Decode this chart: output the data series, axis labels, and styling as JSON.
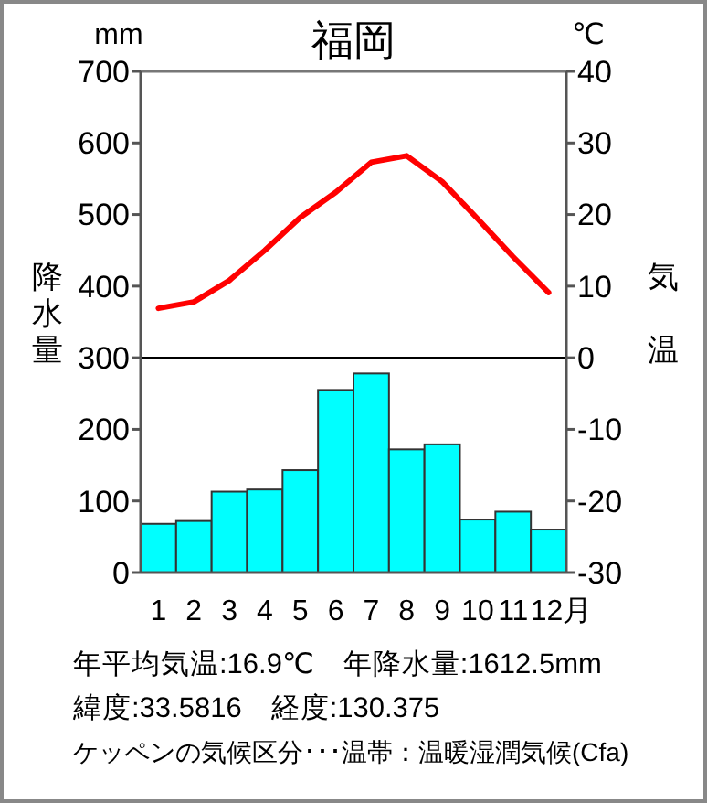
{
  "chart_data": {
    "type": "bar",
    "title": "福岡",
    "ylabel": "降水量",
    "y2label": "気温",
    "categories": [
      "1",
      "2",
      "3",
      "4",
      "5",
      "6",
      "7",
      "8",
      "9",
      "10",
      "11",
      "12月"
    ],
    "series": [
      {
        "color": "#00ffff",
        "values": [
          68,
          72,
          113,
          116,
          143,
          255,
          278,
          172,
          179,
          74,
          85,
          60
        ]
      },
      {
        "type": "line",
        "axis": "y2",
        "color": "#ff0000",
        "values": [
          6.9,
          7.8,
          10.8,
          15.0,
          19.6,
          23.1,
          27.3,
          28.2,
          24.6,
          19.4,
          14.1,
          9.1
        ]
      }
    ],
    "ylim": [
      0,
      700
    ],
    "yticks": [
      0,
      100,
      200,
      300,
      400,
      500,
      600,
      700
    ],
    "y2lim": [
      -30,
      40
    ],
    "y2ticks": [
      -30,
      -20,
      -10,
      0,
      10,
      20,
      30,
      40
    ],
    "ref_lines": [
      {
        "axis": "y",
        "value": 300,
        "color": "#000000"
      }
    ],
    "grid": false,
    "marker": "none",
    "line_style": "solid",
    "annotations": [
      "mm",
      "℃",
      "年平均気温:16.9℃　年降水量:1612.5mm",
      "緯度:33.5816　経度:130.375",
      "ケッペンの気候区分･･･温帯：温暖湿潤気候(Cfa)"
    ]
  }
}
